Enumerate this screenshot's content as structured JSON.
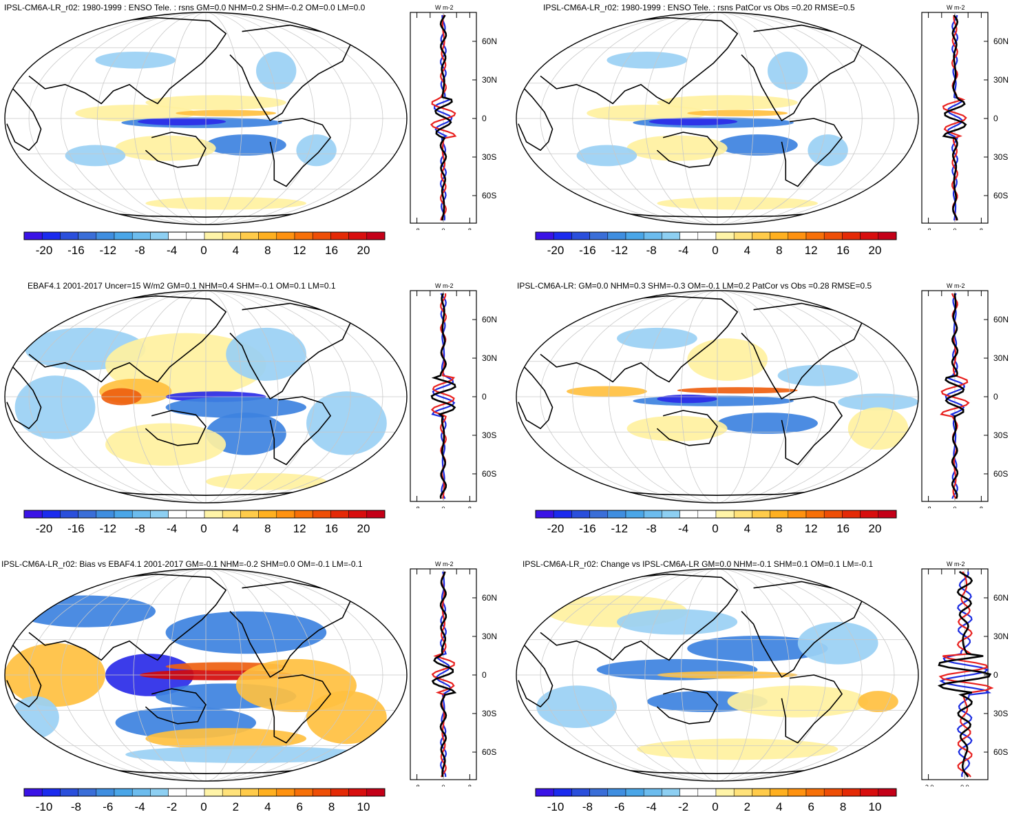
{
  "panels": [
    {
      "id": "p1",
      "title": "IPSL-CM6A-LR_r02: 1980-1999 : ENSO Tele. : rsns GM=0.0 NHM=0.2 SHM=-0.2 OM=0.0 LM=0.0",
      "colorbar_labels": [
        "-20",
        "-16",
        "-12",
        "-8",
        "-4",
        "0",
        "4",
        "8",
        "12",
        "16",
        "20"
      ],
      "zonal_units": "W m-2",
      "zonal_xticks": [
        "-8",
        "0",
        "8"
      ],
      "lat_labels": [
        "60N",
        "30N",
        "0",
        "30S",
        "60S"
      ]
    },
    {
      "id": "p2",
      "title": "IPSL-CM6A-LR_r02: 1980-1999 : ENSO Tele. : rsns PatCor vs Obs =0.20 RMSE=0.5",
      "colorbar_labels": [
        "-20",
        "-16",
        "-12",
        "-8",
        "-4",
        "0",
        "4",
        "8",
        "12",
        "16",
        "20"
      ],
      "zonal_units": "W m-2",
      "zonal_xticks": [
        "-8",
        "0",
        "8"
      ],
      "lat_labels": [
        "60N",
        "30N",
        "0",
        "30S",
        "60S"
      ]
    },
    {
      "id": "p3",
      "title": "EBAF4.1 2001-2017 Uncer=15 W/m2 GM=0.1 NHM=0.4 SHM=-0.1 OM=0.1 LM=0.1",
      "colorbar_labels": [
        "-20",
        "-16",
        "-12",
        "-8",
        "-4",
        "0",
        "4",
        "8",
        "12",
        "16",
        "20"
      ],
      "zonal_units": "W m-2",
      "zonal_xticks": [
        "-8",
        "0",
        "8"
      ],
      "lat_labels": [
        "60N",
        "30N",
        "0",
        "30S",
        "60S"
      ]
    },
    {
      "id": "p4",
      "title": "IPSL-CM6A-LR: GM=0.0 NHM=0.3 SHM=-0.3 OM=-0.1 LM=0.2 PatCor vs Obs =0.28 RMSE=0.5",
      "colorbar_labels": [
        "-20",
        "-16",
        "-12",
        "-8",
        "-4",
        "0",
        "4",
        "8",
        "12",
        "16",
        "20"
      ],
      "zonal_units": "W m-2",
      "zonal_xticks": [
        "-8",
        "0",
        "8"
      ],
      "lat_labels": [
        "60N",
        "30N",
        "0",
        "30S",
        "60S"
      ]
    },
    {
      "id": "p5",
      "title": "IPSL-CM6A-LR_r02: Bias vs EBAF4.1 2001-2017 GM=-0.1 NHM=-0.2 SHM=0.0 OM=-0.1 LM=-0.1",
      "colorbar_labels": [
        "-10",
        "-8",
        "-6",
        "-4",
        "-2",
        "0",
        "2",
        "4",
        "6",
        "8",
        "10"
      ],
      "zonal_units": "W m-2",
      "zonal_xticks": [
        "-8",
        "0",
        "8"
      ],
      "lat_labels": [
        "60N",
        "30N",
        "0",
        "30S",
        "60S"
      ]
    },
    {
      "id": "p6",
      "title": "IPSL-CM6A-LR_r02: Change vs IPSL-CM6A-LR GM=0.0 NHM=-0.1 SHM=0.1 OM=0.1 LM=-0.1",
      "colorbar_labels": [
        "-10",
        "-8",
        "-6",
        "-4",
        "-2",
        "0",
        "2",
        "4",
        "6",
        "8",
        "10"
      ],
      "zonal_units": "W m-2",
      "zonal_xticks": [
        "-2.0",
        "0.0"
      ],
      "lat_labels": [
        "60N",
        "30N",
        "0",
        "30S",
        "60S"
      ]
    }
  ],
  "colors": {
    "colorbar": [
      "#3a13e6",
      "#1b2bee",
      "#2a4fdc",
      "#3a6ed8",
      "#3f8ee0",
      "#4aa6e8",
      "#6cbcee",
      "#8dcff2",
      "#ffffff",
      "#ffffff",
      "#fff4a8",
      "#ffe27a",
      "#ffcb4a",
      "#ffb020",
      "#ff9210",
      "#f77008",
      "#ee4e06",
      "#e42a06",
      "#d80e0e",
      "#c40018"
    ],
    "cold_strong": "#2a2be8",
    "cold_mid": "#3d82e0",
    "cold_weak": "#9ad0f4",
    "warm_weak": "#fff1a0",
    "warm_mid": "#ffc040",
    "warm_strong": "#ee6010",
    "hot": "#d40a0a",
    "zonal_model": "#000000",
    "zonal_obs": "#e8201e",
    "zonal_alt": "#1a2be0"
  }
}
